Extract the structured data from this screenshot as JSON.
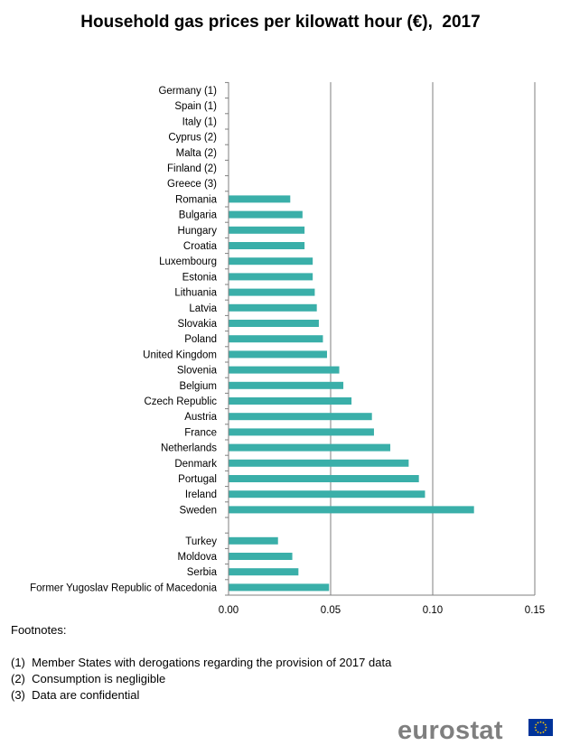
{
  "title": "Household gas prices per kilowatt hour (€),  2017",
  "chart_data": {
    "type": "bar",
    "orientation": "horizontal",
    "categories": [
      "Germany (1)",
      "Spain (1)",
      "Italy (1)",
      "Cyprus (2)",
      "Malta (2)",
      "Finland (2)",
      "Greece (3)",
      "Romania",
      "Bulgaria",
      "Hungary",
      "Croatia",
      "Luxembourg",
      "Estonia",
      "Lithuania",
      "Latvia",
      "Slovakia",
      "Poland",
      "United Kingdom",
      "Slovenia",
      "Belgium",
      "Czech Republic",
      "Austria",
      "France",
      "Netherlands",
      "Denmark",
      "Portugal",
      "Ireland",
      "Sweden",
      "",
      "Turkey",
      "Moldova",
      "Serbia",
      "Former Yugoslav Republic of Macedonia"
    ],
    "values": [
      null,
      null,
      null,
      null,
      null,
      null,
      null,
      0.03,
      0.036,
      0.037,
      0.037,
      0.041,
      0.041,
      0.042,
      0.043,
      0.044,
      0.046,
      0.048,
      0.054,
      0.056,
      0.06,
      0.07,
      0.071,
      0.079,
      0.088,
      0.093,
      0.096,
      0.12,
      null,
      0.024,
      0.031,
      0.034,
      0.049
    ],
    "xlim": [
      0,
      0.15
    ],
    "ticks": [
      "0.00",
      "0.05",
      "0.10",
      "0.15"
    ],
    "tick_values": [
      0,
      0.05,
      0.1,
      0.15
    ],
    "grid": true,
    "bar_color": "#3AAFA9"
  },
  "footnotes": {
    "heading": "Footnotes:",
    "items": [
      "(1)  Member States with derogations regarding the provision of 2017 data",
      "(2)  Consumption is negligible",
      "(3)  Data are confidential"
    ]
  },
  "logo": {
    "text": "eurostat",
    "flag_color": "#003399",
    "star_color": "#FFCC00"
  }
}
